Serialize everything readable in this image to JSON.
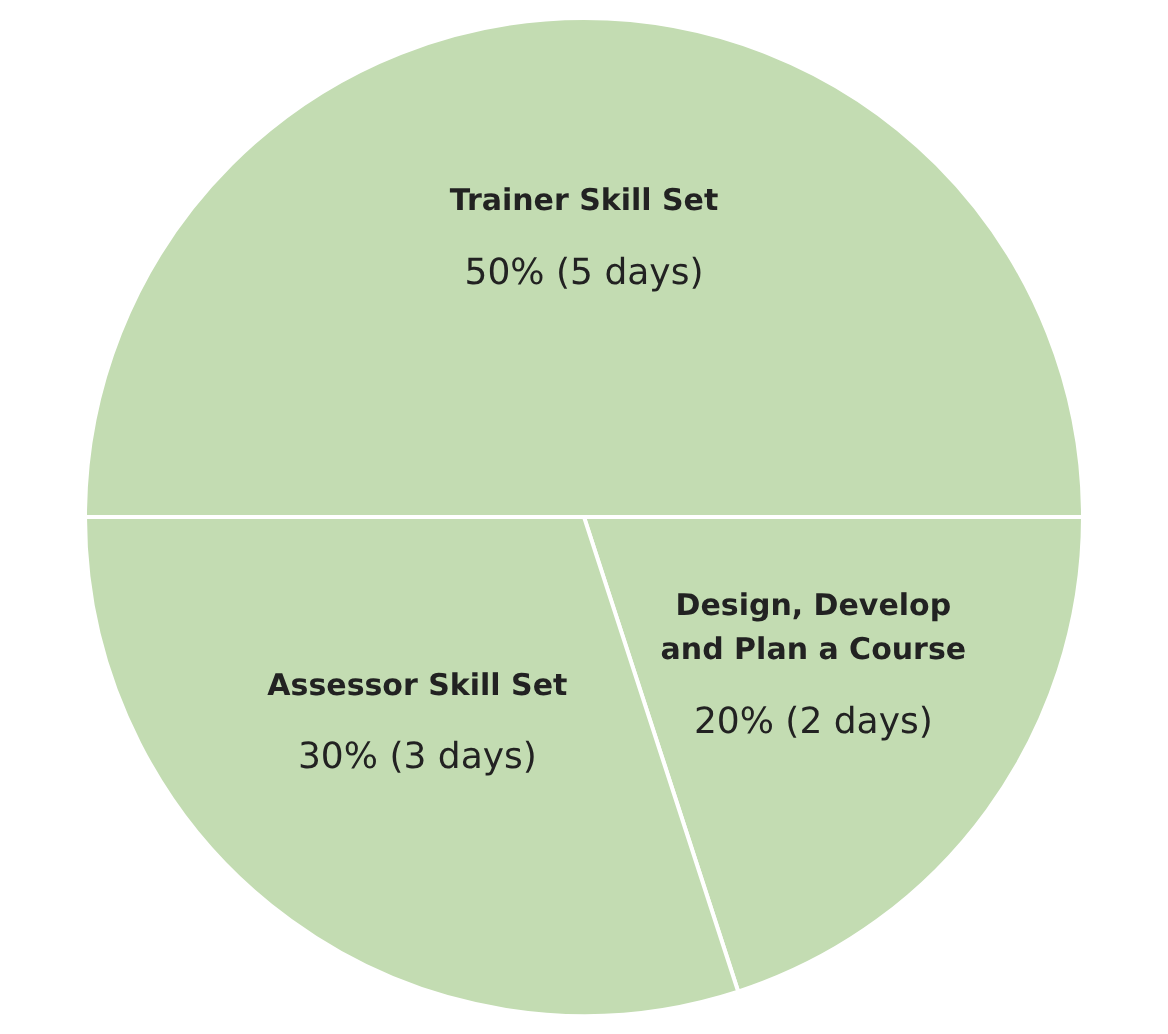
{
  "chart_data": {
    "type": "pie",
    "categories": [
      "Trainer Skill Set",
      "Design, Develop and Plan a Course",
      "Assessor Skill Set"
    ],
    "values": [
      50,
      20,
      30
    ],
    "value_labels": [
      "50% (5 days)",
      "20% (2 days)",
      "30% (3 days)"
    ],
    "colors": [
      "#c3dcb2",
      "#c3dcb2",
      "#c3dcb2"
    ],
    "legend": false
  }
}
